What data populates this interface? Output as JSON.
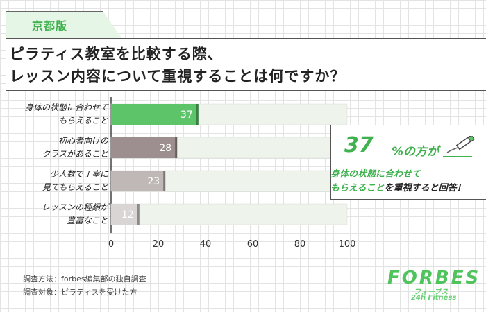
{
  "region_label": "京都版",
  "title": {
    "line1": "ピラティス教室を比較する際、",
    "line2": "レッスン内容について重視することは何ですか？"
  },
  "chart_data": {
    "type": "bar",
    "orientation": "horizontal",
    "categories": [
      [
        "身体の状態に合わせて",
        "もらえること"
      ],
      [
        "初心者向けの",
        "クラスがあること"
      ],
      [
        "少人数で丁寧に",
        "見てもらえること"
      ],
      [
        "レッスンの種類が",
        "豊富なこと"
      ]
    ],
    "values": [
      37,
      28,
      23,
      12
    ],
    "bar_colors": [
      "#5dc46a",
      "#9d8f8f",
      "#c0b7b7",
      "#dad5d5"
    ],
    "track_color": "#eef3ec",
    "xlim": [
      0,
      100
    ],
    "xticks": [
      "0",
      "20",
      "40",
      "60",
      "80",
      "100"
    ],
    "grid": false
  },
  "callout": {
    "percent": "37",
    "percent_suffix": "%の方が",
    "line1": "身体の状態に合わせて",
    "line2_highlight": "もらえること",
    "line2_rest": "を重視すると回答！"
  },
  "sources": {
    "method": "調査方法：forbes編集部の独自調査",
    "target": "調査対象：ピラティスを受けた方"
  },
  "logo": {
    "main": "FORBES",
    "kana": "フォーブス",
    "sub": "24h Fitness"
  }
}
